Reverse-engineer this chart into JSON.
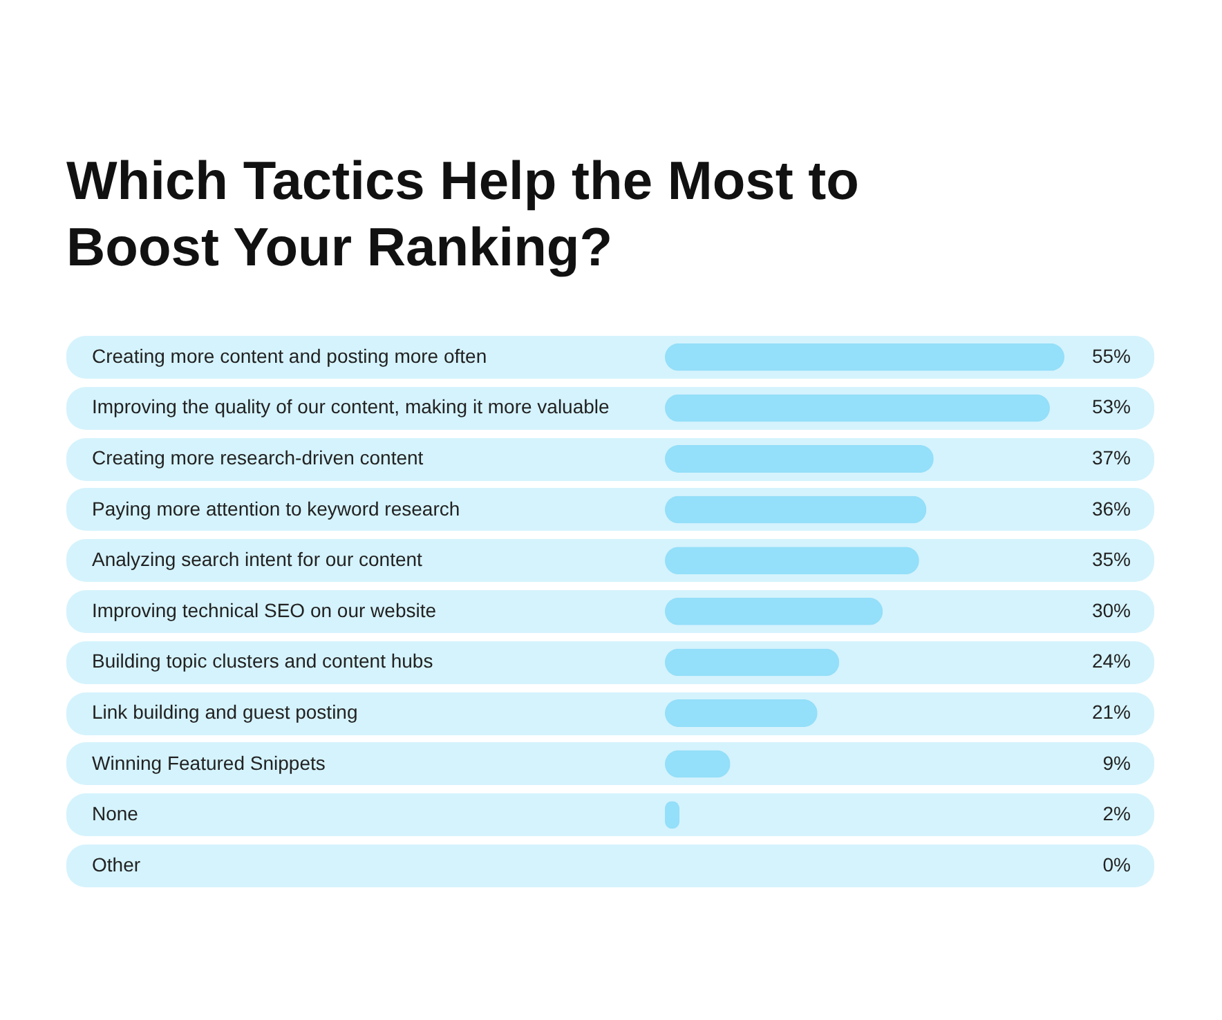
{
  "chart_data": {
    "type": "bar",
    "orientation": "horizontal",
    "title": "Which Tactics Help the Most to Boost Your Ranking?",
    "categories": [
      "Creating more content and posting  more often",
      "Improving the quality of our content, making it more valuable",
      "Creating more research-driven content",
      "Paying more attention to keyword research",
      "Analyzing search intent for our content",
      "Improving technical SEO on our website",
      "Building topic clusters and content hubs",
      "Link building and guest posting",
      "Winning Featured Snippets",
      "None",
      "Other"
    ],
    "values": [
      55,
      53,
      37,
      36,
      35,
      30,
      24,
      21,
      9,
      2,
      0
    ],
    "value_labels": [
      "55%",
      "53%",
      "37%",
      "36%",
      "35%",
      "30%",
      "24%",
      "21%",
      "9%",
      "2%",
      "0%"
    ],
    "color": "#94dff9"
  }
}
